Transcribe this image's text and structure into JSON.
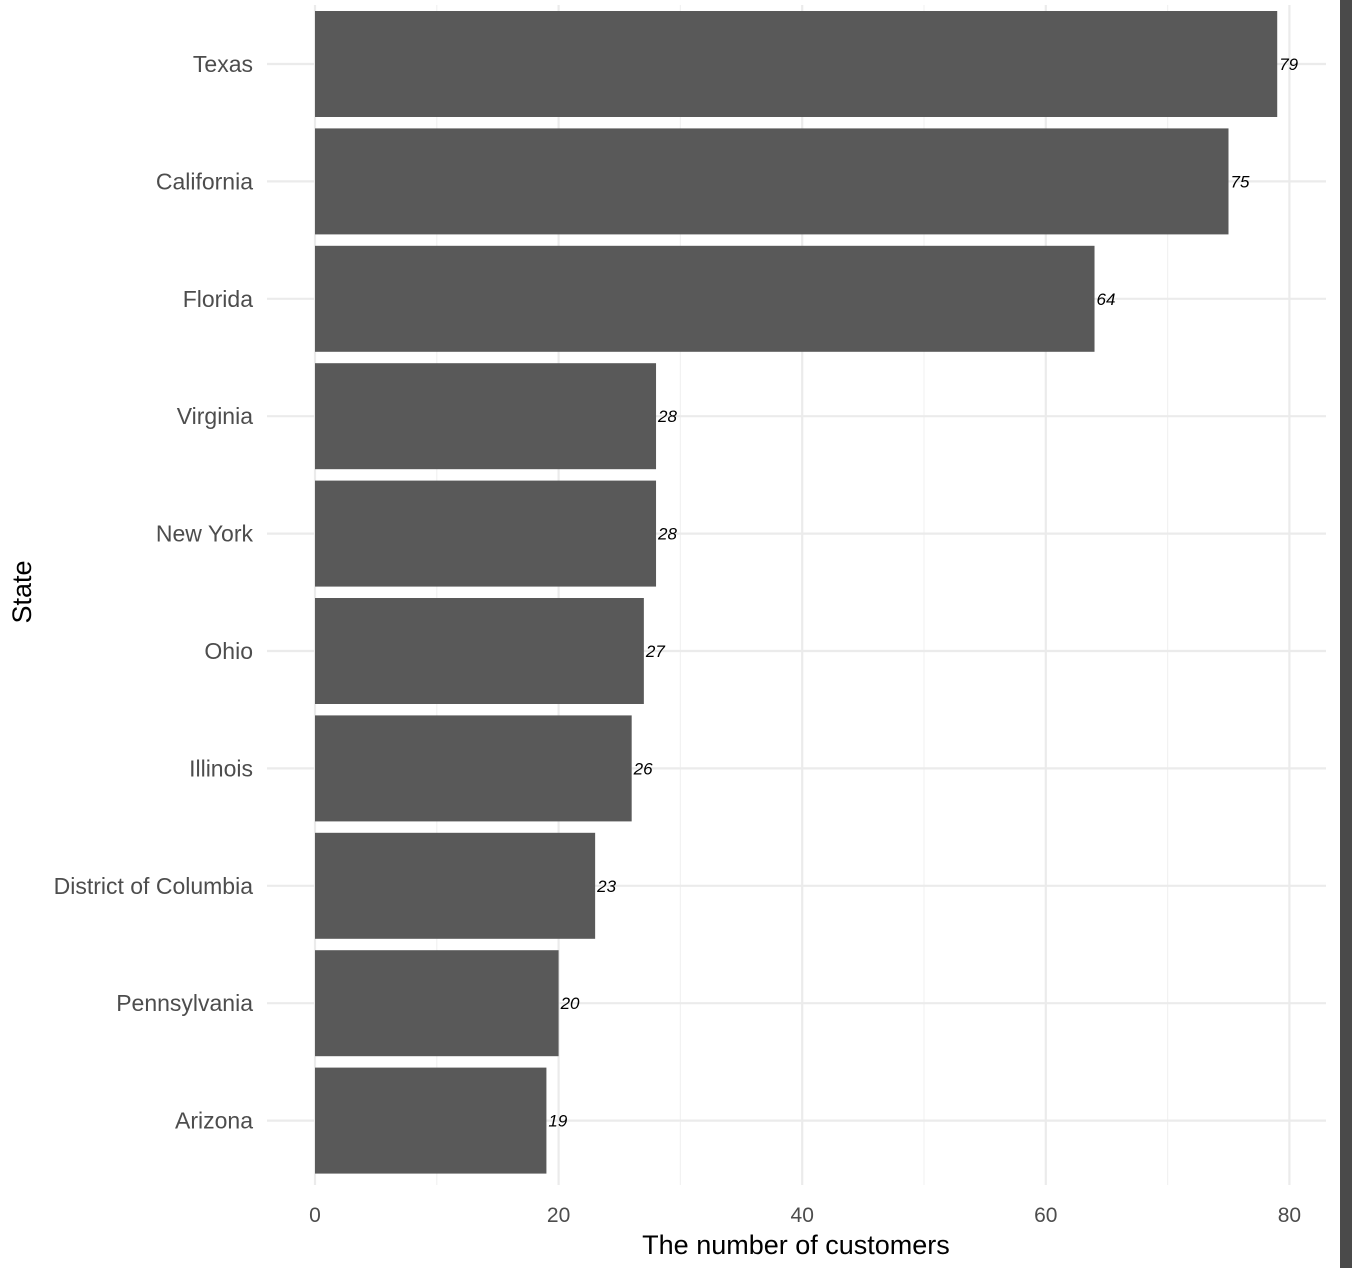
{
  "chart_data": {
    "type": "bar",
    "orientation": "horizontal",
    "categories": [
      "Texas",
      "California",
      "Florida",
      "Virginia",
      "New York",
      "Ohio",
      "Illinois",
      "District of Columbia",
      "Pennsylvania",
      "Arizona"
    ],
    "values": [
      79,
      75,
      64,
      28,
      28,
      27,
      26,
      23,
      20,
      19
    ],
    "data_labels": [
      "79",
      "75",
      "64",
      "28",
      "28",
      "27",
      "26",
      "23",
      "20",
      "19"
    ],
    "xlabel": "The number of customers",
    "ylabel": "State",
    "xlim": [
      0,
      83
    ],
    "xticks": [
      0,
      20,
      40,
      60,
      80
    ],
    "xtick_labels": [
      "0",
      "20",
      "40",
      "60",
      "80"
    ],
    "grid": true,
    "bar_color": "#595959",
    "grid_color": "#ebebeb"
  }
}
